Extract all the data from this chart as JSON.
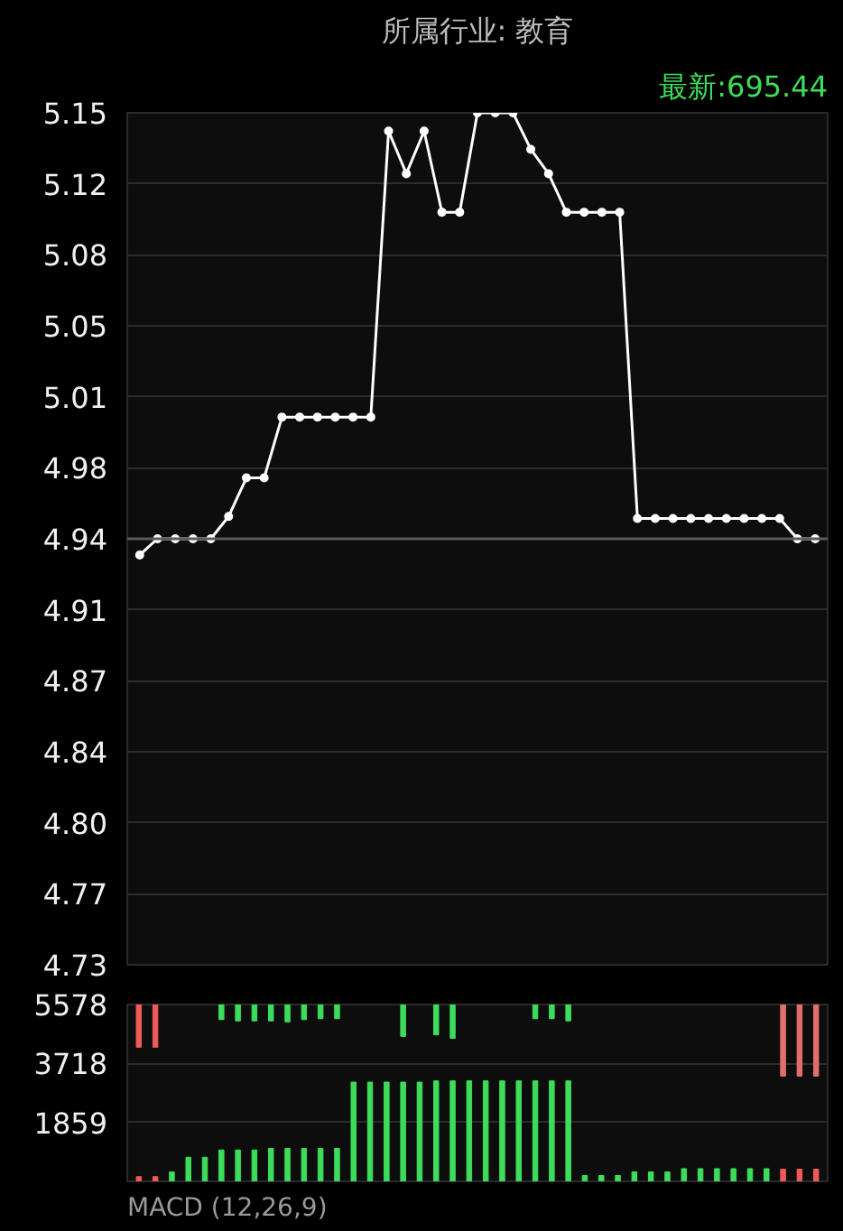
{
  "chart_data": [
    {
      "type": "line",
      "title": "所属行业: 教育",
      "subtitle": "最新:695.44",
      "categories": [
        null,
        null,
        null,
        null,
        null,
        null,
        null,
        null,
        null,
        null,
        null,
        null,
        null,
        null,
        null,
        null,
        null,
        null,
        null,
        null,
        null,
        null,
        null,
        null,
        null,
        null,
        null,
        null,
        null,
        null,
        null,
        null,
        null,
        null,
        null,
        null,
        null,
        null,
        null
      ],
      "series": [
        {
          "color": "#ffffff",
          "values": [
            4.932,
            4.94,
            4.94,
            4.94,
            4.94,
            4.951,
            4.97,
            4.97,
            5.0,
            5.0,
            5.0,
            5.0,
            5.0,
            5.0,
            5.141,
            5.12,
            5.141,
            5.101,
            5.101,
            5.15,
            5.15,
            5.15,
            5.132,
            5.12,
            5.101,
            5.101,
            5.101,
            5.101,
            4.95,
            4.95,
            4.95,
            4.95,
            4.95,
            4.95,
            4.95,
            4.95,
            4.95,
            4.94,
            4.94
          ]
        }
      ],
      "ylim": [
        4.73,
        5.15
      ],
      "yticks": [
        {
          "value": 4.73,
          "label": "4.73"
        },
        {
          "value": 4.765,
          "label": "4.77"
        },
        {
          "value": 4.8,
          "label": "4.80"
        },
        {
          "value": 4.835,
          "label": "4.84"
        },
        {
          "value": 4.87,
          "label": "4.87"
        },
        {
          "value": 4.905,
          "label": "4.91"
        },
        {
          "value": 4.94,
          "label": "4.94"
        },
        {
          "value": 4.975,
          "label": "4.98"
        },
        {
          "value": 5.01,
          "label": "5.01"
        },
        {
          "value": 5.045,
          "label": "5.05"
        },
        {
          "value": 5.08,
          "label": "5.08"
        },
        {
          "value": 5.115,
          "label": "5.12"
        },
        {
          "value": 5.15,
          "label": "5.15"
        }
      ],
      "ref_lines": [
        {
          "axis": "y",
          "value": 4.94,
          "color": "#5a5a5a"
        }
      ],
      "grid": "y",
      "tick_labels": "y",
      "marker": "circle",
      "line_style": "solid"
    },
    {
      "type": "bar",
      "annotations": [
        "MACD (12,26,9)"
      ],
      "categories": [
        null,
        null,
        null,
        null,
        null,
        null,
        null,
        null,
        null,
        null,
        null,
        null,
        null,
        null,
        null,
        null,
        null,
        null,
        null,
        null,
        null,
        null,
        null,
        null,
        null,
        null,
        null,
        null,
        null,
        null,
        null,
        null,
        null,
        null,
        null,
        null,
        null,
        null,
        null,
        null,
        null,
        null
      ],
      "ylim": [
        0,
        5578
      ],
      "yticks": [
        1859,
        3718,
        5578
      ],
      "series": [
        {
          "values": [
            150,
            150,
            295,
            760,
            760,
            990,
            990,
            990,
            1040,
            1040,
            1040,
            1040,
            1040,
            3130,
            3130,
            3130,
            3130,
            3130,
            3170,
            3170,
            3170,
            3170,
            3170,
            3170,
            3170,
            3170,
            3170,
            185,
            185,
            185,
            300,
            300,
            300,
            400,
            400,
            400,
            400,
            400,
            400,
            385,
            385,
            385
          ],
          "colors": [
            "#f05a5a",
            "#f05a5a",
            "#3ddc5a",
            "#3ddc5a",
            "#3ddc5a",
            "#3ddc5a",
            "#3ddc5a",
            "#3ddc5a",
            "#3ddc5a",
            "#3ddc5a",
            "#3ddc5a",
            "#3ddc5a",
            "#3ddc5a",
            "#3ddc5a",
            "#3ddc5a",
            "#3ddc5a",
            "#3ddc5a",
            "#3ddc5a",
            "#3ddc5a",
            "#3ddc5a",
            "#3ddc5a",
            "#3ddc5a",
            "#3ddc5a",
            "#3ddc5a",
            "#3ddc5a",
            "#3ddc5a",
            "#3ddc5a",
            "#3ddc5a",
            "#3ddc5a",
            "#3ddc5a",
            "#3ddc5a",
            "#3ddc5a",
            "#3ddc5a",
            "#3ddc5a",
            "#3ddc5a",
            "#3ddc5a",
            "#3ddc5a",
            "#3ddc5a",
            "#3ddc5a",
            "#f05a5a",
            "#f05a5a",
            "#f05a5a"
          ]
        },
        {
          "base": [
            4230,
            4230,
            null,
            null,
            null,
            5100,
            5060,
            5060,
            5060,
            5030,
            5100,
            5130,
            5130,
            null,
            null,
            null,
            4570,
            null,
            4620,
            4510,
            null,
            null,
            null,
            null,
            5130,
            5130,
            5060,
            null,
            null,
            null,
            null,
            null,
            null,
            null,
            null,
            null,
            null,
            null,
            null,
            3320,
            3320,
            3320
          ],
          "values": [
            1348,
            1348,
            null,
            null,
            null,
            478,
            518,
            518,
            518,
            548,
            478,
            448,
            448,
            null,
            null,
            null,
            1008,
            null,
            958,
            1068,
            null,
            null,
            null,
            null,
            448,
            448,
            518,
            null,
            null,
            null,
            null,
            null,
            null,
            null,
            null,
            null,
            null,
            null,
            null,
            2258,
            2258,
            2258
          ],
          "colors": [
            "#f05a5a",
            "#f05a5a",
            "#3ddc5a",
            "#3ddc5a",
            "#3ddc5a",
            "#3ddc5a",
            "#3ddc5a",
            "#3ddc5a",
            "#3ddc5a",
            "#3ddc5a",
            "#3ddc5a",
            "#3ddc5a",
            "#3ddc5a",
            "#3ddc5a",
            "#3ddc5a",
            "#3ddc5a",
            "#3ddc5a",
            "#3ddc5a",
            "#3ddc5a",
            "#3ddc5a",
            "#3ddc5a",
            "#3ddc5a",
            "#3ddc5a",
            "#3ddc5a",
            "#3ddc5a",
            "#3ddc5a",
            "#3ddc5a",
            "#3ddc5a",
            "#3ddc5a",
            "#3ddc5a",
            "#3ddc5a",
            "#3ddc5a",
            "#3ddc5a",
            "#3ddc5a",
            "#3ddc5a",
            "#3ddc5a",
            "#3ddc5a",
            "#3ddc5a",
            "#3ddc5a",
            "#e07070",
            "#e07070",
            "#e07070"
          ]
        }
      ],
      "grid": "y",
      "tick_labels": "y"
    }
  ]
}
